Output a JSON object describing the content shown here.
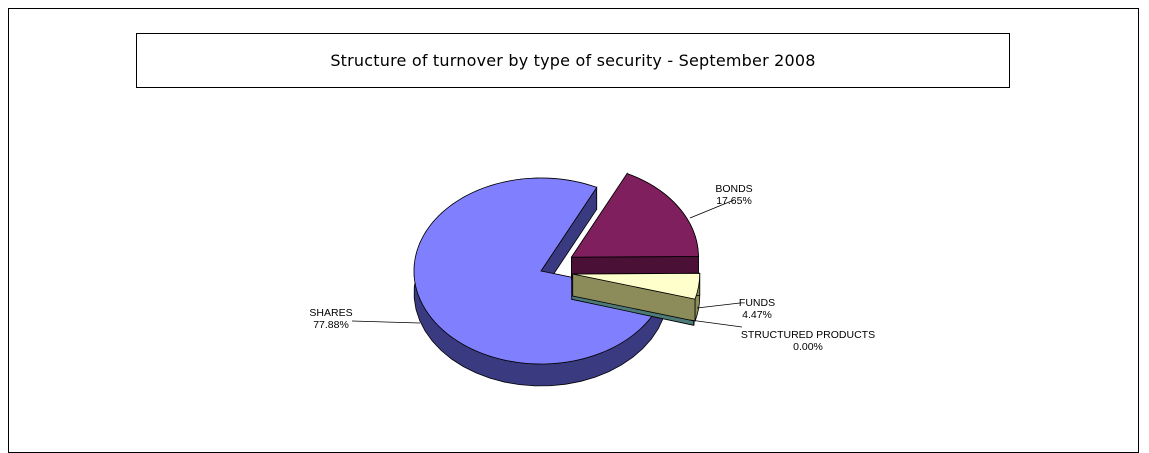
{
  "chart_data": {
    "type": "pie",
    "title": "Structure of turnover by type of security - September 2008",
    "slices": [
      {
        "label": "SHARES",
        "value": 77.88,
        "value_label": "77.88%",
        "color": "#8080ff",
        "side_color": "#3a3a80",
        "exploded": false
      },
      {
        "label": "BONDS",
        "value": 17.65,
        "value_label": "17.65%",
        "color": "#7f1f5d",
        "side_color": "#4a1036",
        "exploded": true
      },
      {
        "label": "FUNDS",
        "value": 4.47,
        "value_label": "4.47%",
        "color": "#ffffcc",
        "side_color": "#8c8c5a",
        "exploded": true
      },
      {
        "label": "STRUCTURED PRODUCTS",
        "value": 0.0,
        "value_label": "0.00%",
        "color": "#2f6b6b",
        "side_color": "#4d7a76",
        "exploded": true
      }
    ],
    "legend": "none",
    "style": "3d-exploded"
  }
}
